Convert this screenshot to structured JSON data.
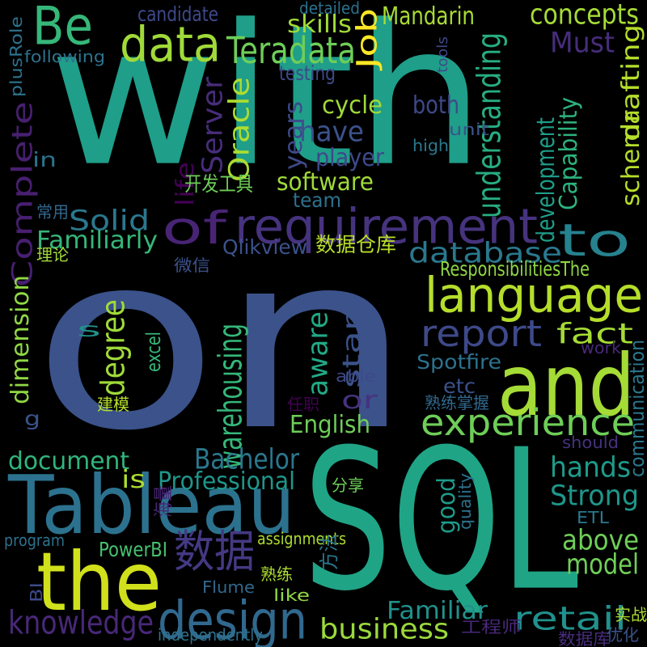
{
  "words": [
    {
      "text": "on",
      "color": "#3b528b"
    },
    {
      "text": "with",
      "color": "#1f9e89"
    },
    {
      "text": "SQL",
      "color": "#20a486"
    },
    {
      "text": "Tableau",
      "color": "#2c728e"
    },
    {
      "text": "the",
      "color": "#d0e11c"
    },
    {
      "text": "and",
      "color": "#a5db36"
    },
    {
      "text": "Be",
      "color": "#35b779"
    },
    {
      "text": "data",
      "color": "#a0da39"
    },
    {
      "text": "of",
      "color": "#482475"
    },
    {
      "text": "requirement",
      "color": "#46337e"
    },
    {
      "text": "to",
      "color": "#26828e"
    },
    {
      "text": "language",
      "color": "#b5de2b"
    },
    {
      "text": "design",
      "color": "#31688e"
    },
    {
      "text": "数据",
      "color": "#443983"
    },
    {
      "text": "experience",
      "color": "#6ece58"
    },
    {
      "text": "report",
      "color": "#3e4989"
    },
    {
      "text": "Complete",
      "color": "#481f70"
    },
    {
      "text": "Teradata",
      "color": "#6ece58"
    },
    {
      "text": "understanding",
      "color": "#27ad81"
    },
    {
      "text": "warehousing",
      "color": "#35b779"
    },
    {
      "text": "Oracle",
      "color": "#addc30"
    },
    {
      "text": "Server",
      "color": "#472d7b"
    },
    {
      "text": "database",
      "color": "#2a788e"
    },
    {
      "text": "concepts",
      "color": "#a5db36"
    },
    {
      "text": "Must",
      "color": "#472d7b"
    },
    {
      "text": "retail",
      "color": "#21918c"
    },
    {
      "text": "knowledge",
      "color": "#482878"
    },
    {
      "text": "business",
      "color": "#9bd93c"
    },
    {
      "text": "Strong",
      "color": "#1f968b"
    },
    {
      "text": "above",
      "color": "#6ece58"
    },
    {
      "text": "model",
      "color": "#70cf57"
    },
    {
      "text": "Bachelor",
      "color": "#2a788e"
    },
    {
      "text": "hands",
      "color": "#1f9a8a"
    },
    {
      "text": "degree",
      "color": "#9fda3a"
    },
    {
      "text": "aware",
      "color": "#22a884"
    },
    {
      "text": "star",
      "color": "#3b528b"
    },
    {
      "text": "fact",
      "color": "#a5db36"
    },
    {
      "text": "Solid",
      "color": "#2a788e"
    },
    {
      "text": "years",
      "color": "#3e4989"
    },
    {
      "text": "have",
      "color": "#3b528b"
    },
    {
      "text": "Job",
      "color": "#fde725"
    },
    {
      "text": "Mandarin",
      "color": "#a8db34"
    },
    {
      "text": "skills",
      "color": "#a0da39"
    },
    {
      "text": "drafting",
      "color": "#b5de2b"
    },
    {
      "text": "schema",
      "color": "#b5de2b"
    },
    {
      "text": "Capability",
      "color": "#2db27d"
    },
    {
      "text": "development",
      "color": "#1f9e89"
    },
    {
      "text": "dimension",
      "color": "#8fd744"
    },
    {
      "text": "Professional",
      "color": "#1f968b"
    },
    {
      "text": "document",
      "color": "#31b57b"
    },
    {
      "text": "Familiar",
      "color": "#21918c"
    },
    {
      "text": "English",
      "color": "#6ece58"
    },
    {
      "text": "etc",
      "color": "#3b528b"
    },
    {
      "text": "or",
      "color": "#46327e"
    },
    {
      "text": "cycle",
      "color": "#a0da39"
    },
    {
      "text": "both",
      "color": "#3e4989"
    },
    {
      "text": "player",
      "color": "#3e4989"
    },
    {
      "text": "software",
      "color": "#a0da39"
    },
    {
      "text": "team",
      "color": "#2c728e"
    },
    {
      "text": "Familiarly",
      "color": "#35b779"
    },
    {
      "text": "Qlikview",
      "color": "#3b528b"
    },
    {
      "text": "Spotfire",
      "color": "#2c728e"
    },
    {
      "text": "PowerBI",
      "color": "#46c06f"
    },
    {
      "text": "communication",
      "color": "#2a788e"
    },
    {
      "text": "good",
      "color": "#1f9a8a"
    },
    {
      "text": "ResponsibilitiesThe",
      "color": "#8fd744"
    },
    {
      "text": "数据仓库",
      "color": "#b8de29"
    },
    {
      "text": "life",
      "color": "#440154"
    },
    {
      "text": "开发工具",
      "color": "#6ece58"
    },
    {
      "text": "s",
      "color": "#21918c"
    },
    {
      "text": "is",
      "color": "#addc30"
    },
    {
      "text": "in",
      "color": "#2c728e"
    },
    {
      "text": "g",
      "color": "#3b528b"
    },
    {
      "text": "Be",
      "color": "#000000"
    },
    {
      "text": "plusRole",
      "color": "#2c728e"
    },
    {
      "text": "candidate",
      "color": "#3e4989"
    },
    {
      "text": "detailed",
      "color": "#2c728e"
    },
    {
      "text": "tools",
      "color": "#3e4989"
    },
    {
      "text": "following",
      "color": "#2c728e"
    },
    {
      "text": "testing",
      "color": "#3e4989"
    },
    {
      "text": "unit",
      "color": "#3b528b"
    },
    {
      "text": "high",
      "color": "#2a788e"
    },
    {
      "text": "常用",
      "color": "#31688e"
    },
    {
      "text": "理论",
      "color": "#a0da39"
    },
    {
      "text": "微信",
      "color": "#3b528b"
    },
    {
      "text": "excel",
      "color": "#35b779"
    },
    {
      "text": "work",
      "color": "#482878"
    },
    {
      "text": "able",
      "color": "#3e4989"
    },
    {
      "text": "建模",
      "color": "#b5de2b"
    },
    {
      "text": "任职",
      "color": "#440154"
    },
    {
      "text": "熟练掌握",
      "color": "#31688e"
    },
    {
      "text": "should",
      "color": "#46327e"
    },
    {
      "text": "分享",
      "color": "#6ece58"
    },
    {
      "text": "海量",
      "color": "#482475"
    },
    {
      "text": "quality",
      "color": "#2c728e"
    },
    {
      "text": "ETL",
      "color": "#2a788e"
    },
    {
      "text": "program",
      "color": "#2c728e"
    },
    {
      "text": "assignments",
      "color": "#addc30"
    },
    {
      "text": "方法",
      "color": "#2a788e"
    },
    {
      "text": "熟练",
      "color": "#addc30"
    },
    {
      "text": "Flume",
      "color": "#31688e"
    },
    {
      "text": "like",
      "color": "#8fd744"
    },
    {
      "text": "BI",
      "color": "#3e4989"
    },
    {
      "text": "工程师",
      "color": "#482878"
    },
    {
      "text": "实战",
      "color": "#addc30"
    },
    {
      "text": "independently",
      "color": "#2c728e"
    },
    {
      "text": "数据库",
      "color": "#472d7b"
    },
    {
      "text": "优化",
      "color": "#3b528b"
    }
  ]
}
